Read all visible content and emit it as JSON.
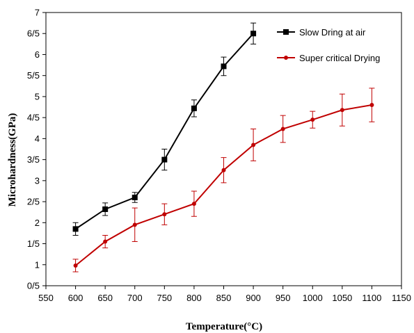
{
  "chart_data": {
    "type": "line",
    "xlabel": "Temperature(°C)",
    "ylabel": "Microhardness(GPa)",
    "xlim": [
      550,
      1150
    ],
    "ylim": [
      0.5,
      7
    ],
    "x_ticks": [
      "550",
      "600",
      "650",
      "700",
      "750",
      "800",
      "850",
      "900",
      "950",
      "1000",
      "1050",
      "1100",
      "1150"
    ],
    "x_tick_values": [
      550,
      600,
      650,
      700,
      750,
      800,
      850,
      900,
      950,
      1000,
      1050,
      1100,
      1150
    ],
    "y_ticks": [
      "0/5",
      "1",
      "1/5",
      "2",
      "2/5",
      "3",
      "3/5",
      "4",
      "4/5",
      "5",
      "5/5",
      "6",
      "6/5",
      "7"
    ],
    "y_tick_values": [
      0.5,
      1,
      1.5,
      2,
      2.5,
      3,
      3.5,
      4,
      4.5,
      5,
      5.5,
      6,
      6.5,
      7
    ],
    "grid": false,
    "legend_position": "top-right",
    "series": [
      {
        "name": "Slow Dring at air",
        "color": "#000000",
        "marker": "square",
        "x": [
          600,
          650,
          700,
          750,
          800,
          850,
          900
        ],
        "y": [
          1.85,
          2.32,
          2.6,
          3.5,
          4.72,
          5.72,
          6.5
        ],
        "err": [
          0.15,
          0.15,
          0.12,
          0.25,
          0.2,
          0.22,
          0.25
        ]
      },
      {
        "name": "Super critical Drying",
        "color": "#c00000",
        "marker": "circle",
        "x": [
          600,
          650,
          700,
          750,
          800,
          850,
          900,
          950,
          1000,
          1050,
          1100
        ],
        "y": [
          0.98,
          1.55,
          1.95,
          2.2,
          2.45,
          3.25,
          3.85,
          4.23,
          4.45,
          4.68,
          4.8
        ],
        "err": [
          0.15,
          0.15,
          0.4,
          0.25,
          0.3,
          0.3,
          0.38,
          0.32,
          0.2,
          0.38,
          0.4
        ]
      }
    ]
  }
}
